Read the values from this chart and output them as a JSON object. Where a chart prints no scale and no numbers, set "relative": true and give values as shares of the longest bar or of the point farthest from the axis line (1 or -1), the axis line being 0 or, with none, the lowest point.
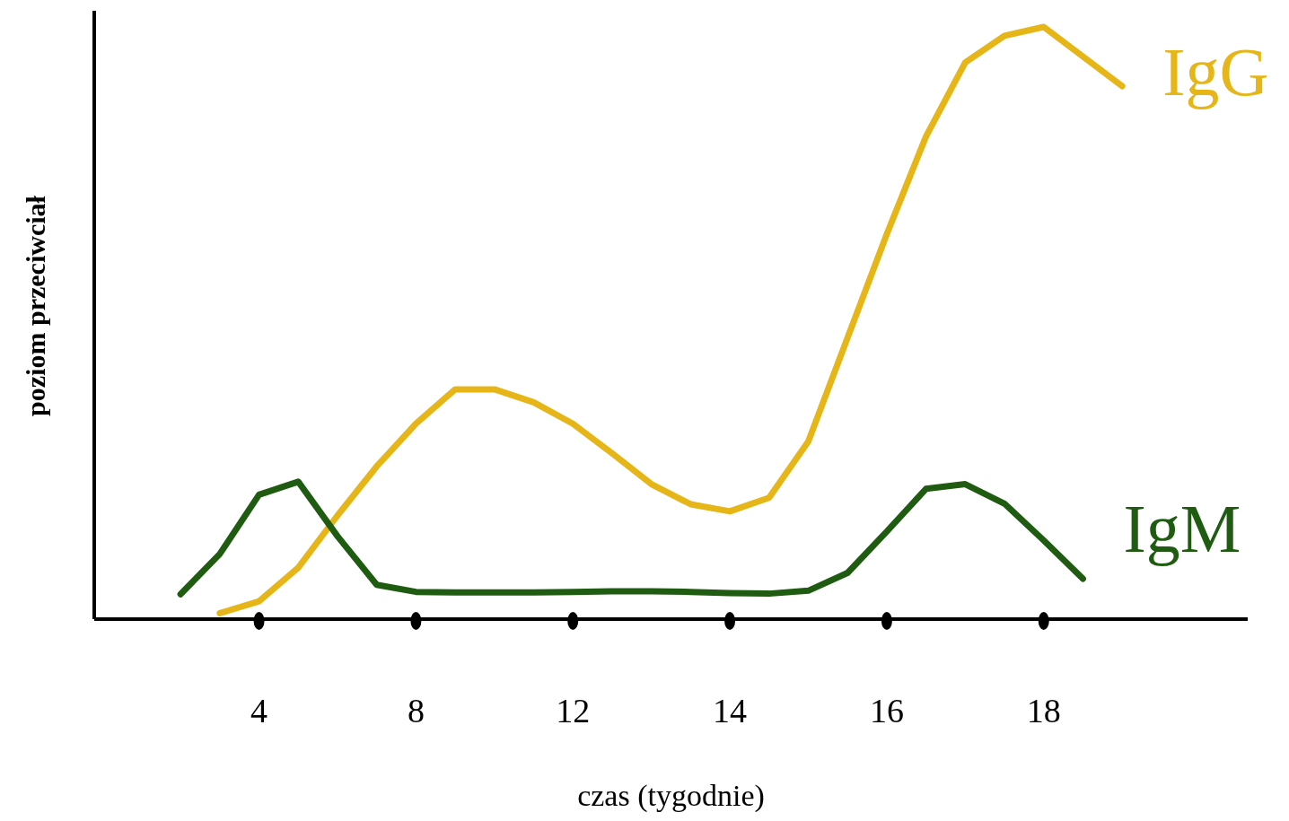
{
  "chart_data": {
    "type": "line",
    "relative": true,
    "xlabel": "czas (tygodnie)",
    "ylabel": "poziom przeciwciał",
    "categories": [
      null,
      null,
      null,
      null,
      "4",
      null,
      null,
      null,
      "8",
      null,
      null,
      null,
      "12",
      null,
      null,
      null,
      "14",
      null,
      null,
      null,
      "16",
      null,
      null,
      null,
      "18",
      null,
      null,
      null,
      null,
      null
    ],
    "legend": false,
    "grid": false,
    "marker": "none",
    "line_style": "solid",
    "series": [
      {
        "name": "IgG",
        "color": "#e6b618",
        "values": [
          null,
          null,
          null,
          0.01,
          0.03,
          0.087,
          0.175,
          0.258,
          0.33,
          0.388,
          0.388,
          0.366,
          0.33,
          0.28,
          0.228,
          0.194,
          0.182,
          0.205,
          0.3,
          0.475,
          0.65,
          0.815,
          0.94,
          0.985,
          1,
          0.95,
          0.9,
          null,
          null,
          null
        ]
      },
      {
        "name": "IgM",
        "color": "#1f5c12",
        "values": [
          null,
          null,
          0.042,
          0.11,
          0.21,
          0.232,
          0.14,
          0.058,
          0.046,
          0.045,
          0.045,
          0.045,
          0.046,
          0.047,
          0.047,
          0.046,
          0.044,
          0.043,
          0.048,
          0.078,
          0.148,
          0.22,
          0.228,
          0.195,
          0.133,
          0.068,
          null,
          null,
          null,
          null
        ]
      }
    ]
  }
}
